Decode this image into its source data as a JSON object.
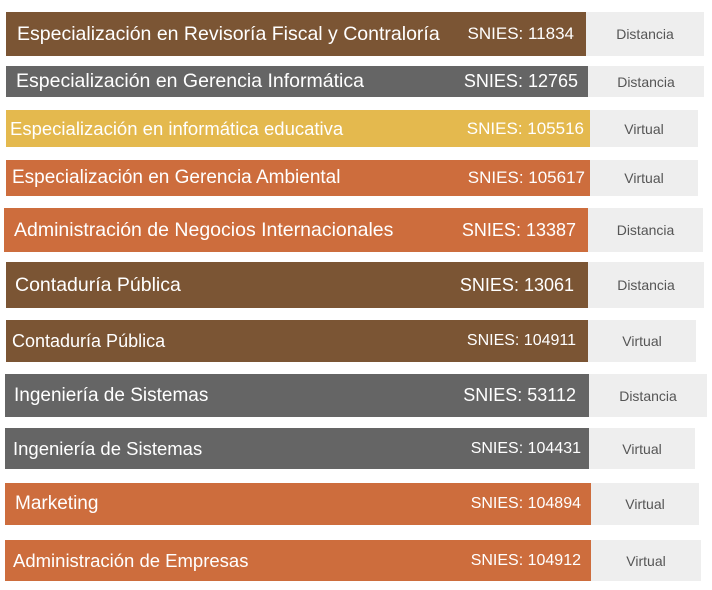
{
  "colors": {
    "brown": "#7b5534",
    "gray": "#656565",
    "yellow": "#e4b94e",
    "orange": "#cd6d3d",
    "mode_box": "#eeeeee",
    "mode_text": "#555555"
  },
  "programs": [
    {
      "name": "Especialización en Revisoría Fiscal y Contraloría",
      "snies": "SNIES: 11834",
      "mode": "Distancia",
      "color": "brown"
    },
    {
      "name": "Especialización en Gerencia Informática",
      "snies": "SNIES: 12765",
      "mode": "Distancia",
      "color": "gray"
    },
    {
      "name": "Especialización en informática educativa",
      "snies": "SNIES: 105516",
      "mode": "Virtual",
      "color": "yellow"
    },
    {
      "name": "Especialización en Gerencia Ambiental",
      "snies": "SNIES: 105617",
      "mode": "Virtual",
      "color": "orange"
    },
    {
      "name": "Administración de Negocios Internacionales",
      "snies": "SNIES: 13387",
      "mode": "Distancia",
      "color": "orange"
    },
    {
      "name": "Contaduría Pública",
      "snies": "SNIES: 13061",
      "mode": "Distancia",
      "color": "brown"
    },
    {
      "name": "Contaduría Pública",
      "snies": "SNIES: 104911",
      "mode": "Virtual",
      "color": "brown"
    },
    {
      "name": "Ingeniería de Sistemas",
      "snies": "SNIES: 53112",
      "mode": "Distancia",
      "color": "gray"
    },
    {
      "name": "Ingeniería de Sistemas",
      "snies": "SNIES: 104431",
      "mode": "Virtual",
      "color": "gray"
    },
    {
      "name": "Marketing",
      "snies": "SNIES: 104894",
      "mode": "Virtual",
      "color": "orange"
    },
    {
      "name": "Administración de Empresas",
      "snies": "SNIES: 104912",
      "mode": "Virtual",
      "color": "orange"
    }
  ]
}
